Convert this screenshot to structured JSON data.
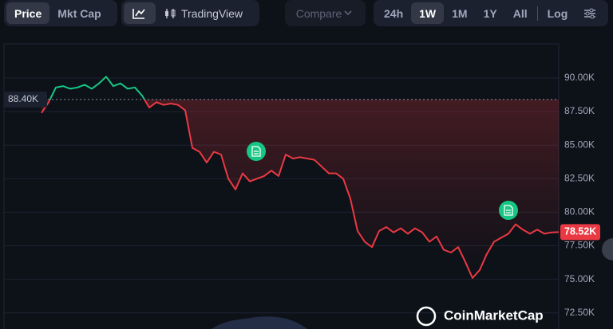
{
  "toolbar": {
    "price": "Price",
    "mkt_cap": "Mkt Cap",
    "tradingview": "TradingView",
    "compare": "Compare",
    "ranges": [
      "24h",
      "1W",
      "1M",
      "1Y",
      "All"
    ],
    "log": "Log"
  },
  "watermark": "CoinMarketCap",
  "chart_data": {
    "type": "line",
    "values": [
      87400,
      88200,
      89300,
      89400,
      89200,
      89300,
      89500,
      89200,
      89600,
      90100,
      89400,
      89600,
      89200,
      89300,
      88700,
      87800,
      88200,
      88000,
      88100,
      88000,
      87600,
      84800,
      84500,
      83700,
      84500,
      84300,
      82500,
      81700,
      82900,
      82300,
      82500,
      82700,
      83100,
      82700,
      84300,
      84000,
      84100,
      84000,
      83900,
      83400,
      82900,
      82900,
      82500,
      81000,
      78600,
      77800,
      77400,
      78600,
      78900,
      78500,
      78800,
      78400,
      78800,
      78500,
      77800,
      78200,
      77200,
      77000,
      77400,
      76300,
      75100,
      75700,
      76900,
      77800,
      78100,
      78400,
      79100,
      78700,
      78400,
      78700,
      78400,
      78500,
      78520
    ],
    "baseline": {
      "value": 88400,
      "label": "88.40K"
    },
    "last_price": {
      "value": 78520,
      "label": "78.52K"
    },
    "colors": {
      "above": "#16c784",
      "below": "#ea3943"
    },
    "ylim": [
      71300,
      92550
    ],
    "yticks": [
      {
        "value": 72500,
        "label": "72.50K"
      },
      {
        "value": 75000,
        "label": "75.00K"
      },
      {
        "value": 77500,
        "label": "77.50K"
      },
      {
        "value": 80000,
        "label": "80.00K"
      },
      {
        "value": 82500,
        "label": "82.50K"
      },
      {
        "value": 85000,
        "label": "85.00K"
      },
      {
        "value": 87500,
        "label": "87.50K"
      },
      {
        "value": 90000,
        "label": "90.00K"
      }
    ],
    "grid": true
  }
}
